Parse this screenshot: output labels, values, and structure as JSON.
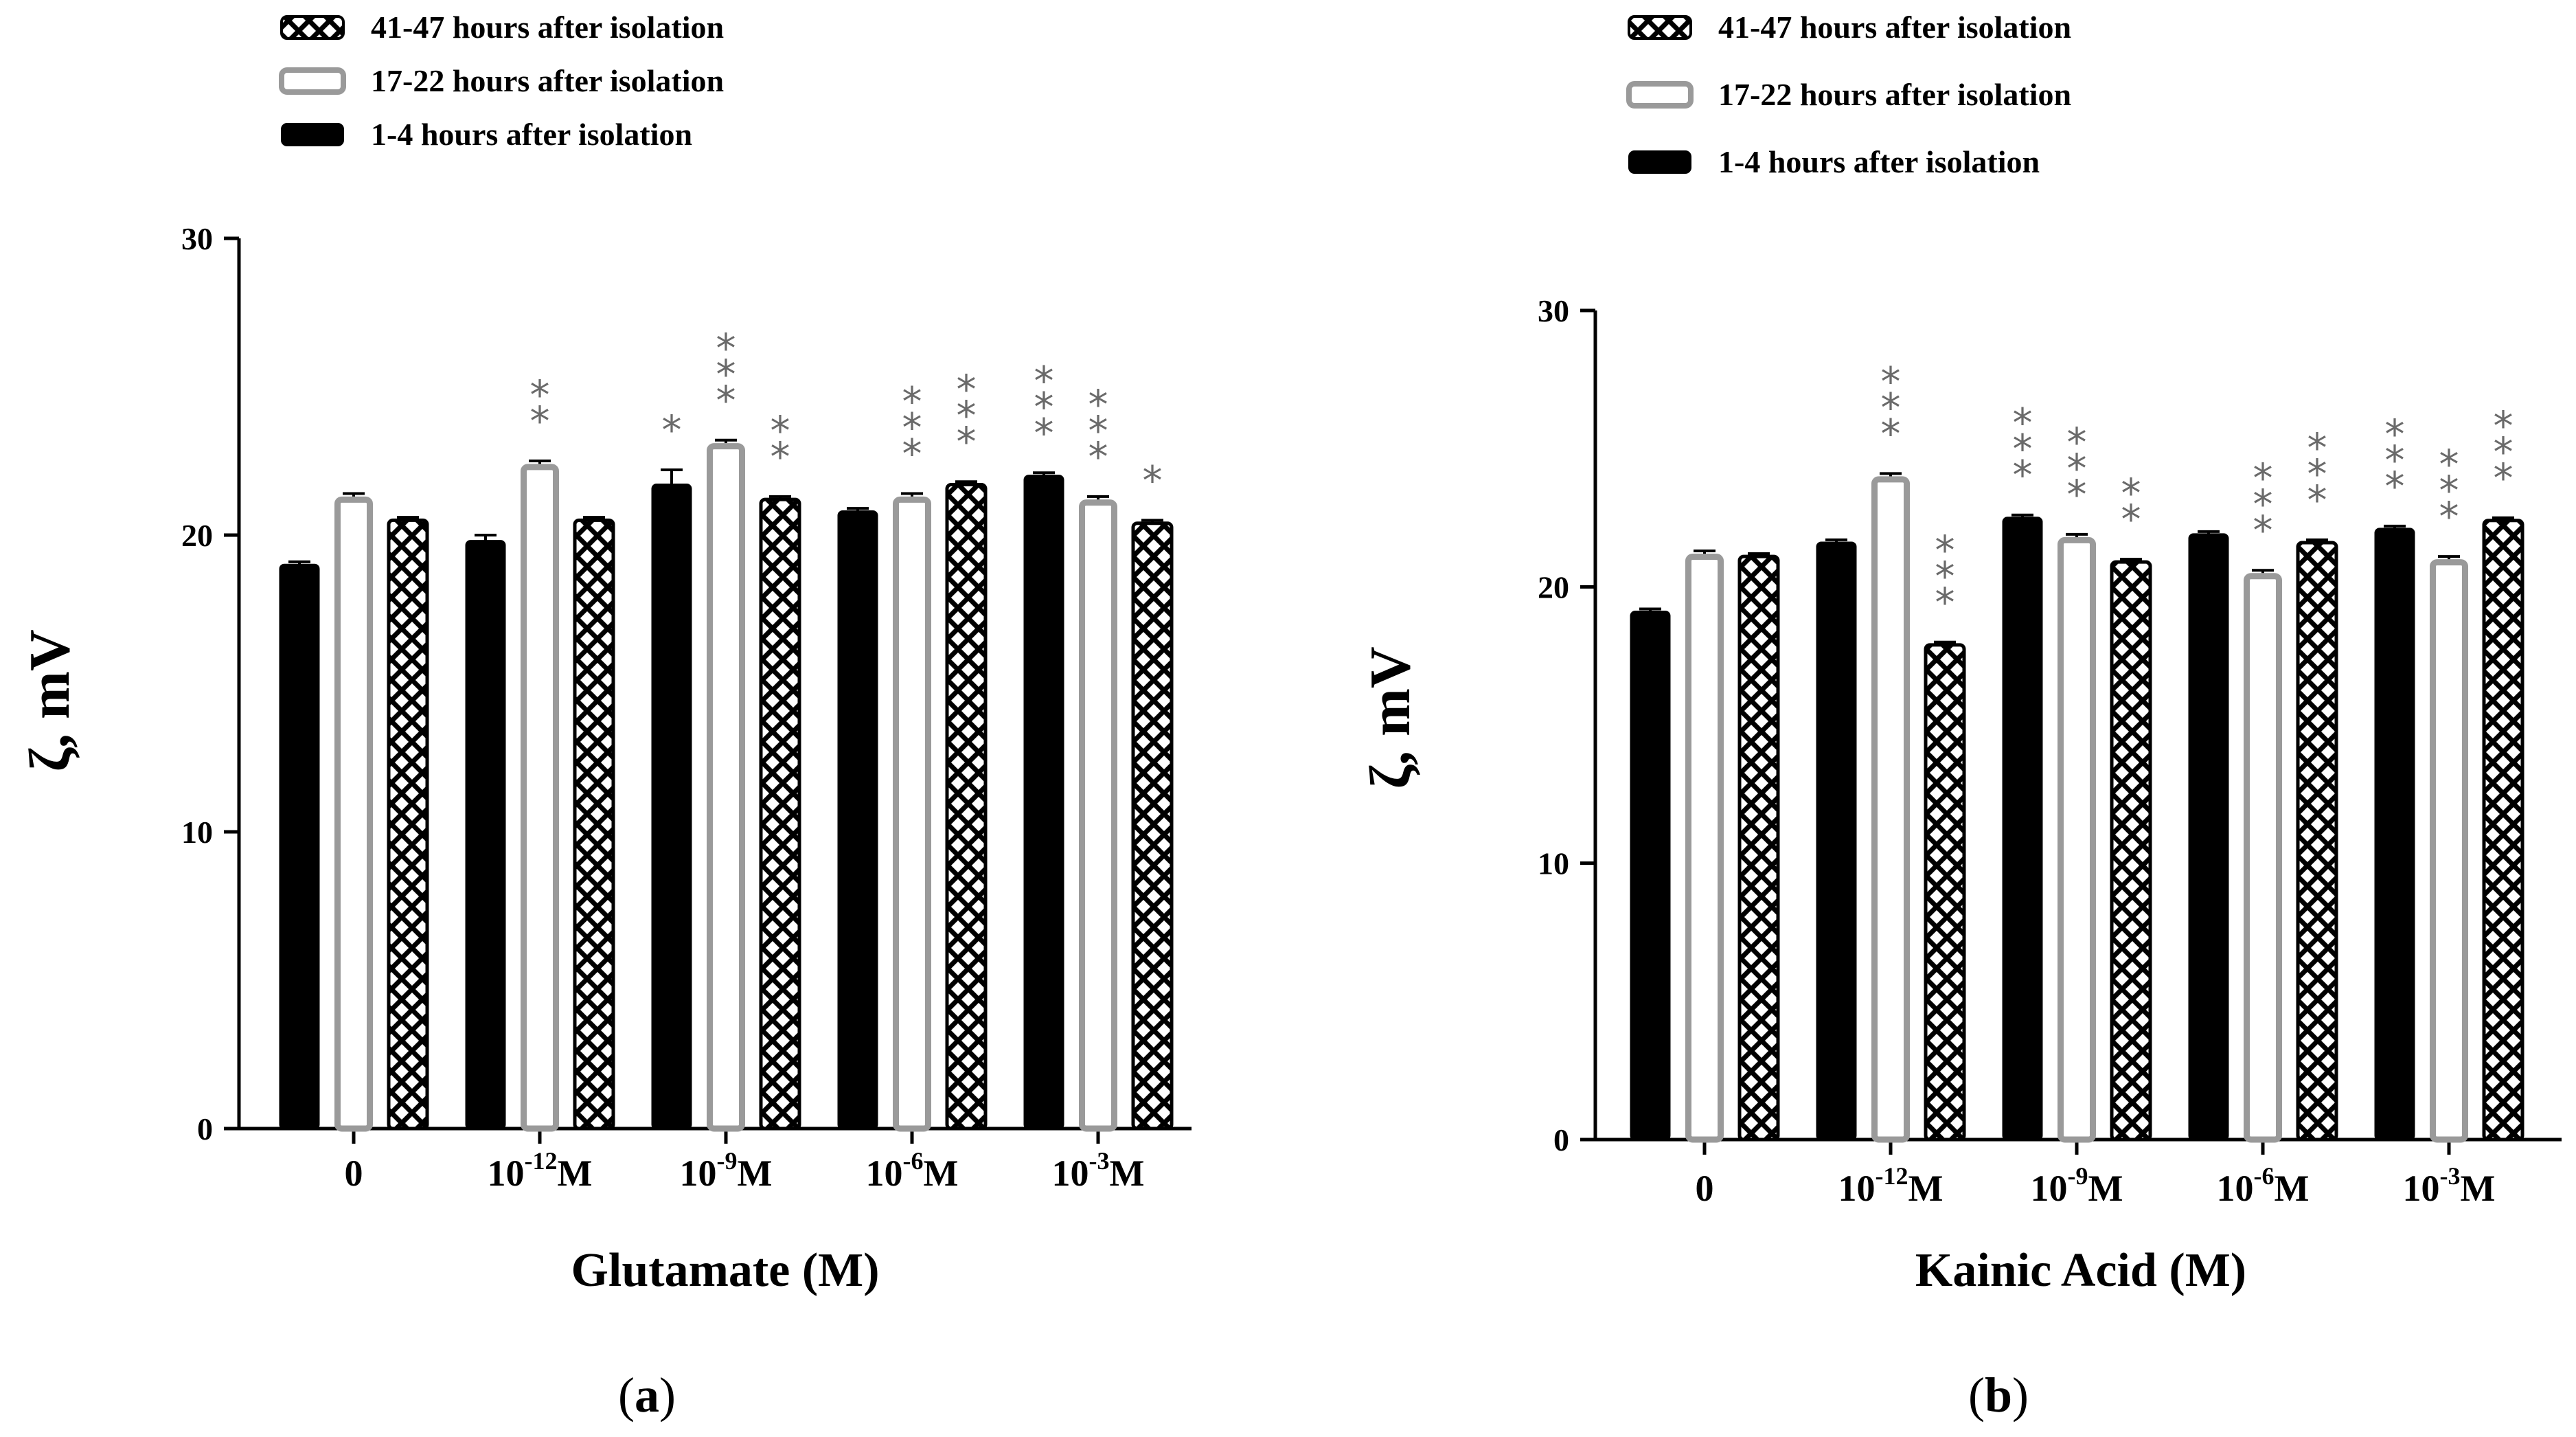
{
  "legend": {
    "entries": [
      "41-47 hours after isolation",
      "17-22 hours after isolation",
      "1-4 hours after isolation"
    ]
  },
  "chart_data": [
    {
      "type": "bar",
      "panel": "a",
      "xlabel": "Glutamate (M)",
      "ylabel": "ζ, mV",
      "ylim": [
        0,
        30
      ],
      "yticks": [
        "0",
        "10",
        "20",
        "30"
      ],
      "categories": [
        {
          "base": "0",
          "exp": "",
          "unit": ""
        },
        {
          "base": "10",
          "exp": "-12",
          "unit": "M"
        },
        {
          "base": "10",
          "exp": "-9",
          "unit": "M"
        },
        {
          "base": "10",
          "exp": "-6",
          "unit": "M"
        },
        {
          "base": "10",
          "exp": "-3",
          "unit": "M"
        }
      ],
      "series": [
        {
          "name": "1-4 hours after isolation",
          "style": "solid",
          "values": [
            19.0,
            19.8,
            21.7,
            20.8,
            22.0
          ],
          "errors": [
            0.1,
            0.2,
            0.5,
            0.1,
            0.1
          ]
        },
        {
          "name": "17-22 hours after isolation",
          "style": "hollow",
          "values": [
            21.3,
            22.4,
            23.1,
            21.3,
            21.2
          ],
          "errors": [
            0.1,
            0.1,
            0.1,
            0.1,
            0.1
          ]
        },
        {
          "name": "41-47 hours after isolation",
          "style": "hatched",
          "values": [
            20.5,
            20.5,
            21.2,
            21.7,
            20.4
          ],
          "errors": [
            0.1,
            0.1,
            0.1,
            0.1,
            0.1
          ]
        }
      ],
      "significance": [
        [
          "",
          "",
          ""
        ],
        [
          "",
          "**",
          ""
        ],
        [
          "*",
          "***",
          "**"
        ],
        [
          "",
          "***",
          "***"
        ],
        [
          "***",
          "***",
          "*"
        ]
      ],
      "panel_label": "a"
    },
    {
      "type": "bar",
      "panel": "b",
      "xlabel": "Kainic Acid (M)",
      "ylabel": "ζ, mV",
      "ylim": [
        0,
        30
      ],
      "yticks": [
        "0",
        "10",
        "20",
        "30"
      ],
      "categories": [
        {
          "base": "0",
          "exp": "",
          "unit": ""
        },
        {
          "base": "10",
          "exp": "-12",
          "unit": "M"
        },
        {
          "base": "10",
          "exp": "-9",
          "unit": "M"
        },
        {
          "base": "10",
          "exp": "-6",
          "unit": "M"
        },
        {
          "base": "10",
          "exp": "-3",
          "unit": "M"
        }
      ],
      "series": [
        {
          "name": "1-4 hours after isolation",
          "style": "solid",
          "values": [
            19.1,
            21.6,
            22.5,
            21.9,
            22.1
          ],
          "errors": [
            0.1,
            0.1,
            0.1,
            0.1,
            0.1
          ]
        },
        {
          "name": "17-22 hours after isolation",
          "style": "hollow",
          "values": [
            21.2,
            24.0,
            21.8,
            20.5,
            21.0
          ],
          "errors": [
            0.1,
            0.1,
            0.1,
            0.1,
            0.1
          ]
        },
        {
          "name": "41-47 hours after isolation",
          "style": "hatched",
          "values": [
            21.1,
            17.9,
            20.9,
            21.6,
            22.4
          ],
          "errors": [
            0.1,
            0.1,
            0.1,
            0.1,
            0.1
          ]
        }
      ],
      "significance": [
        [
          "",
          "",
          ""
        ],
        [
          "",
          "***",
          "***"
        ],
        [
          "***",
          "***",
          "**"
        ],
        [
          "",
          "***",
          "***"
        ],
        [
          "***",
          "***",
          "***"
        ]
      ],
      "panel_label": "b"
    }
  ]
}
